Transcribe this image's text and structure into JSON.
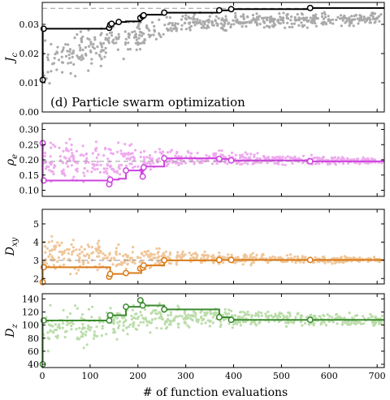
{
  "figure": {
    "annotation": "(d) Particle swarm optimization",
    "xlabel": "# of function evaluations",
    "xlim": [
      0,
      715
    ],
    "xticks": [
      "0",
      "100",
      "200",
      "300",
      "400",
      "500",
      "600",
      "700"
    ]
  },
  "chart_data": [
    {
      "type": "line",
      "ylabel": "J_c",
      "ylim": [
        0,
        0.0375
      ],
      "yticks": [
        "0.00",
        "0.01",
        "0.02",
        "0.03"
      ],
      "color": "#000000",
      "scatter_color": "#aaaaaa",
      "reference": 0.0355,
      "best_so_far": {
        "x": [
          0,
          1,
          140,
          142,
          145,
          160,
          175,
          205,
          207,
          210,
          212,
          215,
          255,
          370,
          395,
          560,
          715
        ],
        "y": [
          0.011,
          0.0285,
          0.0288,
          0.0298,
          0.0302,
          0.0308,
          0.031,
          0.0315,
          0.0322,
          0.0328,
          0.0331,
          0.0333,
          0.034,
          0.0348,
          0.0352,
          0.0356,
          0.0356
        ]
      },
      "markers": {
        "x": [
          1,
          3,
          140,
          142,
          145,
          160,
          205,
          210,
          212,
          255,
          370,
          395,
          560
        ],
        "y": [
          0.011,
          0.0285,
          0.0288,
          0.0298,
          0.0302,
          0.0308,
          0.0322,
          0.0328,
          0.0331,
          0.034,
          0.0348,
          0.0352,
          0.0356
        ]
      },
      "scatter_band": [
        [
          0,
          0.005,
          0.03
        ],
        [
          150,
          0.015,
          0.032
        ],
        [
          300,
          0.027,
          0.0345
        ],
        [
          715,
          0.029,
          0.035
        ]
      ]
    },
    {
      "type": "line",
      "ylabel": "ρ_e",
      "ylim": [
        0.08,
        0.32
      ],
      "yticks": [
        "0.10",
        "0.15",
        "0.20",
        "0.25",
        "0.30"
      ],
      "color": "#cc44dd",
      "scatter_color": "#eeaaee",
      "reference": 0.195,
      "best_so_far": {
        "x": [
          0,
          1,
          140,
          142,
          145,
          160,
          175,
          205,
          207,
          210,
          212,
          215,
          255,
          370,
          395,
          560,
          715
        ],
        "y": [
          0.255,
          0.132,
          0.131,
          0.12,
          0.135,
          0.138,
          0.165,
          0.168,
          0.145,
          0.165,
          0.175,
          0.178,
          0.205,
          0.203,
          0.198,
          0.195,
          0.195
        ]
      },
      "markers": {
        "x": [
          1,
          3,
          140,
          142,
          175,
          210,
          212,
          255,
          370,
          395,
          560
        ],
        "y": [
          0.255,
          0.132,
          0.12,
          0.135,
          0.165,
          0.145,
          0.175,
          0.205,
          0.203,
          0.198,
          0.195
        ]
      },
      "scatter_band": [
        [
          0,
          0.09,
          0.3
        ],
        [
          150,
          0.11,
          0.28
        ],
        [
          300,
          0.17,
          0.24
        ],
        [
          715,
          0.18,
          0.21
        ]
      ]
    },
    {
      "type": "line",
      "ylabel": "D_xy",
      "ylim": [
        1.7,
        5.8
      ],
      "yticks": [
        "2",
        "3",
        "4",
        "5"
      ],
      "color": "#d97b1a",
      "scatter_color": "#f0c699",
      "reference": 3.0,
      "best_so_far": {
        "x": [
          0,
          1,
          140,
          142,
          145,
          160,
          175,
          205,
          207,
          210,
          212,
          215,
          255,
          370,
          395,
          560,
          715
        ],
        "y": [
          1.8,
          2.62,
          2.62,
          2.1,
          2.25,
          2.25,
          2.3,
          2.3,
          2.55,
          2.6,
          2.7,
          2.72,
          3.0,
          3.02,
          3.02,
          3.02,
          3.02
        ]
      },
      "markers": {
        "x": [
          1,
          3,
          140,
          142,
          175,
          205,
          210,
          212,
          255,
          370,
          395,
          560
        ],
        "y": [
          1.8,
          2.62,
          2.1,
          2.25,
          2.3,
          2.55,
          2.6,
          2.72,
          3.0,
          3.02,
          3.02,
          3.02
        ]
      },
      "scatter_band": [
        [
          0,
          1.8,
          5.0
        ],
        [
          150,
          2.0,
          4.2
        ],
        [
          300,
          2.6,
          3.6
        ],
        [
          715,
          2.85,
          3.2
        ]
      ]
    },
    {
      "type": "line",
      "ylabel": "D_z",
      "ylim": [
        35,
        148
      ],
      "yticks": [
        "40",
        "60",
        "80",
        "100",
        "120",
        "140"
      ],
      "color": "#3a8a2e",
      "scatter_color": "#bbddaa",
      "reference": null,
      "best_so_far": {
        "x": [
          0,
          1,
          140,
          142,
          145,
          160,
          175,
          205,
          207,
          210,
          212,
          215,
          255,
          370,
          395,
          560,
          715
        ],
        "y": [
          40,
          107,
          107,
          115,
          115,
          115,
          128,
          128,
          138,
          130,
          130,
          130,
          124,
          112,
          108,
          108,
          108
        ]
      },
      "markers": {
        "x": [
          1,
          3,
          140,
          142,
          175,
          205,
          210,
          255,
          370,
          395,
          560
        ],
        "y": [
          40,
          107,
          107,
          115,
          128,
          138,
          130,
          124,
          112,
          108,
          108
        ]
      },
      "scatter_band": [
        [
          0,
          38,
          140
        ],
        [
          150,
          70,
          140
        ],
        [
          300,
          90,
          135
        ],
        [
          715,
          96,
          118
        ]
      ]
    }
  ]
}
